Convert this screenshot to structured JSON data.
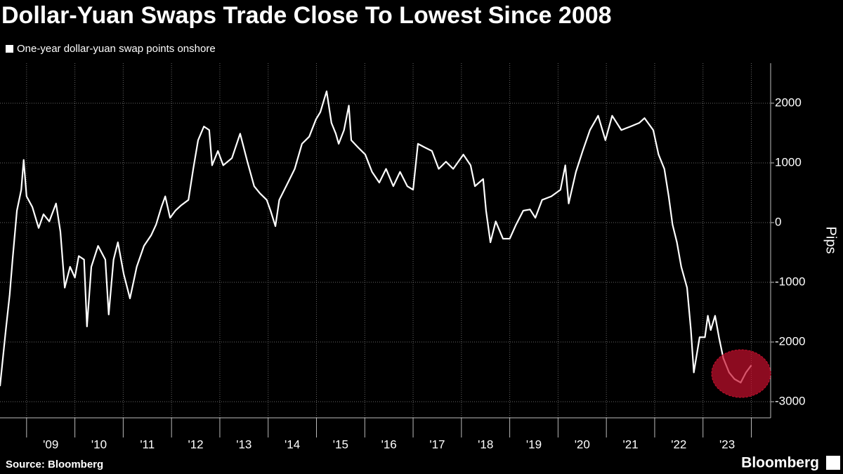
{
  "chart_data": {
    "type": "line",
    "title": "Dollar-Yuan Swaps Trade Close To Lowest Since 2008",
    "y_label": "Pips",
    "source": "Source: Bloomberg",
    "brand": "Bloomberg",
    "x": [
      2008.45,
      2008.57,
      2008.65,
      2008.71,
      2008.8,
      2008.89,
      2008.94,
      2009.0,
      2009.12,
      2009.25,
      2009.35,
      2009.47,
      2009.61,
      2009.7,
      2009.79,
      2009.9,
      2010.0,
      2010.08,
      2010.19,
      2010.25,
      2010.34,
      2010.48,
      2010.63,
      2010.7,
      2010.8,
      2010.89,
      2011.01,
      2011.14,
      2011.28,
      2011.43,
      2011.58,
      2011.68,
      2011.79,
      2011.87,
      2011.97,
      2012.08,
      2012.2,
      2012.35,
      2012.45,
      2012.55,
      2012.67,
      2012.78,
      2012.84,
      2012.96,
      2013.07,
      2013.25,
      2013.42,
      2013.57,
      2013.71,
      2013.83,
      2013.97,
      2014.05,
      2014.15,
      2014.23,
      2014.41,
      2014.55,
      2014.7,
      2014.85,
      2014.99,
      2015.08,
      2015.21,
      2015.31,
      2015.4,
      2015.46,
      2015.57,
      2015.67,
      2015.72,
      2015.86,
      2016.01,
      2016.15,
      2016.3,
      2016.44,
      2016.59,
      2016.73,
      2016.88,
      2017.0,
      2017.1,
      2017.24,
      2017.39,
      2017.53,
      2017.68,
      2017.83,
      2018.04,
      2018.19,
      2018.28,
      2018.45,
      2018.51,
      2018.6,
      2018.71,
      2018.86,
      2019.0,
      2019.13,
      2019.28,
      2019.42,
      2019.53,
      2019.67,
      2019.86,
      2020.05,
      2020.15,
      2020.22,
      2020.37,
      2020.51,
      2020.66,
      2020.83,
      2020.98,
      2021.12,
      2021.31,
      2021.5,
      2021.68,
      2021.79,
      2021.97,
      2022.08,
      2022.2,
      2022.29,
      2022.37,
      2022.46,
      2022.55,
      2022.67,
      2022.75,
      2022.81,
      2022.93,
      2023.04,
      2023.1,
      2023.16,
      2023.25,
      2023.33,
      2023.42,
      2023.54,
      2023.65,
      2023.78,
      2023.89,
      2024.0
    ],
    "series": [
      {
        "name": "One-year dollar-yuan swap points onshore",
        "color": "#ffffff",
        "values": [
          -2740,
          -1800,
          -1210,
          -620,
          200,
          550,
          1050,
          440,
          260,
          -90,
          140,
          20,
          320,
          -150,
          -1090,
          -740,
          -920,
          -560,
          -620,
          -1740,
          -740,
          -390,
          -620,
          -1540,
          -620,
          -330,
          -860,
          -1270,
          -740,
          -390,
          -210,
          -35,
          260,
          440,
          80,
          200,
          290,
          380,
          900,
          1380,
          1610,
          1550,
          960,
          1200,
          960,
          1080,
          1490,
          1020,
          610,
          490,
          380,
          200,
          -60,
          380,
          670,
          900,
          1320,
          1440,
          1730,
          1850,
          2200,
          1670,
          1490,
          1320,
          1550,
          1960,
          1380,
          1260,
          1140,
          850,
          670,
          900,
          610,
          850,
          610,
          550,
          1320,
          1260,
          1200,
          900,
          1020,
          900,
          1140,
          960,
          610,
          730,
          200,
          -330,
          20,
          -270,
          -270,
          -35,
          200,
          220,
          80,
          380,
          440,
          550,
          960,
          320,
          850,
          1200,
          1550,
          1790,
          1380,
          1790,
          1550,
          1610,
          1670,
          1750,
          1550,
          1140,
          900,
          440,
          -35,
          -330,
          -740,
          -1090,
          -1800,
          -2510,
          -1920,
          -1920,
          -1560,
          -1800,
          -1560,
          -1920,
          -2270,
          -2510,
          -2620,
          -2680,
          -2510,
          -2390
        ]
      }
    ],
    "xlim": [
      2008.45,
      2024.4
    ],
    "xticks": [
      {
        "value": 2009.5,
        "label": "'09"
      },
      {
        "value": 2010.5,
        "label": "'10"
      },
      {
        "value": 2011.5,
        "label": "'11"
      },
      {
        "value": 2012.5,
        "label": "'12"
      },
      {
        "value": 2013.5,
        "label": "'13"
      },
      {
        "value": 2014.5,
        "label": "'14"
      },
      {
        "value": 2015.5,
        "label": "'15"
      },
      {
        "value": 2016.5,
        "label": "'16"
      },
      {
        "value": 2017.5,
        "label": "'17"
      },
      {
        "value": 2018.5,
        "label": "'18"
      },
      {
        "value": 2019.5,
        "label": "'19"
      },
      {
        "value": 2020.5,
        "label": "'20"
      },
      {
        "value": 2021.5,
        "label": "'21"
      },
      {
        "value": 2022.5,
        "label": "'22"
      },
      {
        "value": 2023.5,
        "label": "'23"
      }
    ],
    "ylim": [
      -3270,
      2670
    ],
    "yticks": [
      -3000,
      -2000,
      -1000,
      0,
      1000,
      2000
    ],
    "grid": true,
    "highlight_color": "#c8102e"
  }
}
